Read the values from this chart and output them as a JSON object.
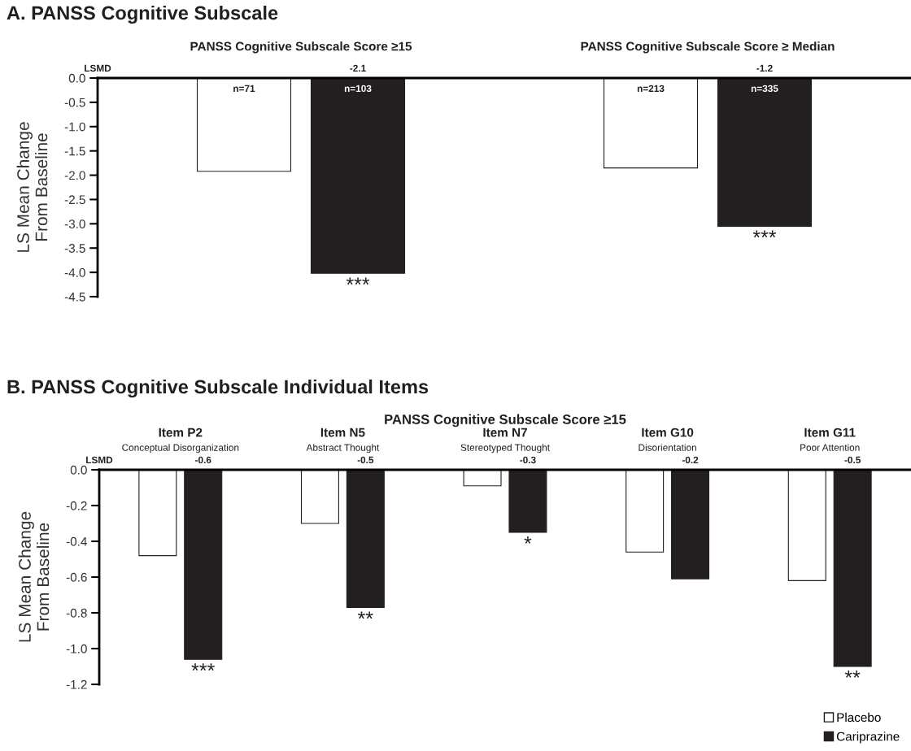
{
  "chart_data": [
    {
      "type": "bar",
      "title": "A. PANSS Cognitive Subscale",
      "ylabel": "LS Mean Change\nFrom Baseline",
      "categories": [
        "PANSS Cognitive Subscale Score ≥15",
        "PANSS Cognitive Subscale Score ≥ Median"
      ],
      "series": [
        {
          "color": "#ffffff",
          "values": [
            -1.92,
            -1.85
          ]
        },
        {
          "color": "#231f20",
          "values": [
            -4.02,
            -3.05
          ],
          "value_labels": [
            "***",
            "***"
          ]
        }
      ],
      "ylim": [
        -4.5,
        0
      ],
      "yticks": [
        {
          "value": 0,
          "label": "0.0"
        },
        {
          "value": -0.5,
          "label": "-0.5"
        },
        {
          "value": -1,
          "label": "-1.0"
        },
        {
          "value": -1.5,
          "label": "-1.5"
        },
        {
          "value": -2,
          "label": "-2.0"
        },
        {
          "value": -2.5,
          "label": "-2.5"
        },
        {
          "value": -3,
          "label": "-3.0"
        },
        {
          "value": -3.5,
          "label": "-3.5"
        },
        {
          "value": -4,
          "label": "-4.0"
        },
        {
          "value": -4.5,
          "label": "-4.5"
        }
      ],
      "grid": false,
      "legend": false,
      "annotations": [
        "LSMD",
        "-2.1",
        "-1.2",
        "n=71",
        "n=103",
        "n=213",
        "n=335"
      ]
    },
    {
      "type": "bar",
      "title": "B. PANSS Cognitive Subscale Individual Items",
      "subtitle": "PANSS Cognitive Subscale Score ≥15",
      "ylabel": "LS Mean Change\nFrom Baseline",
      "categories": [
        "Item P2\nConceptual Disorganization",
        "Item N5\nAbstract Thought",
        "Item N7\nStereotyped Thought",
        "Item G10\nDisorientation",
        "Item G11\nPoor Attention"
      ],
      "series": [
        {
          "name": "Placebo",
          "color": "#ffffff",
          "values": [
            -0.48,
            -0.3,
            -0.09,
            -0.46,
            -0.62
          ]
        },
        {
          "name": "Cariprazine",
          "color": "#231f20",
          "values": [
            -1.06,
            -0.77,
            -0.35,
            -0.61,
            -1.1
          ],
          "value_labels": [
            "***",
            "**",
            "*",
            null,
            "**"
          ]
        }
      ],
      "ylim": [
        -1.2,
        0
      ],
      "yticks": [
        {
          "value": 0,
          "label": "0.0"
        },
        {
          "value": -0.2,
          "label": "-0.2"
        },
        {
          "value": -0.4,
          "label": "-0.4"
        },
        {
          "value": -0.6,
          "label": "-0.6"
        },
        {
          "value": -0.8,
          "label": "-0.8"
        },
        {
          "value": -1,
          "label": "-1.0"
        },
        {
          "value": -1.2,
          "label": "-1.2"
        }
      ],
      "grid": false,
      "legend": "bottom right",
      "annotations": [
        "LSMD",
        "-0.6",
        "-0.5",
        "-0.3",
        "-0.2",
        "-0.5"
      ]
    }
  ]
}
